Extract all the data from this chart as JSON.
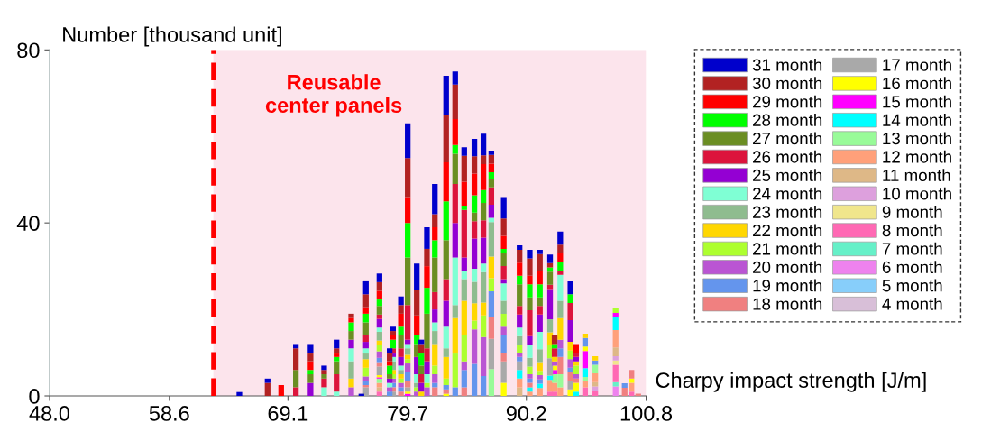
{
  "chart_data": {
    "type": "bar",
    "stacked": true,
    "ylabel": "Number [thousand unit]",
    "xlabel": "Charpy impact strength [J/m]",
    "x": [
      64.8,
      67.3,
      68.5,
      69.8,
      71.1,
      72.3,
      73.4,
      74.7,
      75.6,
      76.0,
      77.2,
      78.1,
      78.4,
      79.1,
      79.7,
      80.5,
      80.9,
      81.4,
      82.1,
      83.1,
      83.9,
      84.7,
      85.6,
      86.4,
      87.1,
      88.2,
      89.6,
      90.5,
      91.4,
      92.3,
      92.7,
      93.2,
      94.1,
      94.6,
      95.4,
      96.3,
      98.1,
      98.9,
      99.5,
      100.1
    ],
    "xlim": [
      48.0,
      100.8
    ],
    "xticks": [
      {
        "value": 48.0,
        "label": "48.0"
      },
      {
        "value": 58.6,
        "label": "58.6"
      },
      {
        "value": 69.1,
        "label": "69.1"
      },
      {
        "value": 79.7,
        "label": "79.7"
      },
      {
        "value": 90.2,
        "label": "90.2"
      },
      {
        "value": 100.8,
        "label": "100.8"
      }
    ],
    "ylim": [
      0,
      80
    ],
    "yticks": [
      0,
      40,
      80
    ],
    "legend": "right",
    "grid": false,
    "bands": [
      {
        "axis": "x",
        "from": 62.5,
        "to": 100.8,
        "label": "Reusable\ncenter panels",
        "color": "#fce4ec"
      }
    ],
    "ref_lines": [
      {
        "axis": "x",
        "value": 62.5,
        "color": "#ff0000",
        "line_style": "dashed"
      }
    ],
    "series": [
      {
        "name": "4 month",
        "color": "#d8bfd8",
        "values": [
          0,
          0,
          0,
          0,
          0,
          0,
          0,
          0,
          0,
          0,
          0,
          0,
          0,
          0,
          0,
          0,
          0,
          0,
          0,
          0,
          0,
          0,
          0,
          0,
          0,
          0,
          0,
          0,
          0,
          0,
          0,
          0,
          0,
          0,
          0,
          0,
          0,
          0,
          0,
          0
        ]
      },
      {
        "name": "5 month",
        "color": "#87cefa",
        "values": [
          0,
          0,
          0,
          0,
          0,
          0,
          0,
          0,
          0,
          0,
          0,
          0,
          0,
          0,
          0,
          0,
          0,
          0,
          0,
          0,
          0,
          0,
          0,
          0,
          0,
          0,
          0,
          0,
          0,
          0,
          0,
          0,
          0,
          0,
          0,
          0,
          0,
          0,
          0,
          0
        ]
      },
      {
        "name": "6 month",
        "color": "#ee82ee",
        "values": [
          0,
          0,
          0,
          0,
          0,
          0,
          0,
          0,
          0,
          0,
          0,
          0,
          0,
          0,
          0,
          0,
          0,
          0,
          0,
          0,
          0,
          0,
          0,
          0,
          0,
          0,
          0,
          0,
          0,
          0,
          0,
          0,
          0,
          0,
          0,
          0,
          2.2,
          0,
          0,
          0
        ]
      },
      {
        "name": "7 month",
        "color": "#66f0c8",
        "values": [
          0,
          0,
          0,
          0,
          0,
          0,
          0,
          0,
          0,
          0,
          0,
          0,
          0,
          0,
          0,
          0,
          0,
          0,
          0,
          0,
          0,
          0,
          0,
          0,
          0,
          0,
          0,
          0,
          0,
          0,
          0,
          0,
          0,
          0,
          0,
          0,
          1,
          0,
          0,
          0
        ]
      },
      {
        "name": "8 month",
        "color": "#ff69b4",
        "values": [
          0,
          0,
          0,
          0,
          0,
          0,
          0,
          0,
          0,
          0,
          1,
          0,
          0,
          0,
          0,
          0,
          0,
          0,
          0,
          0,
          0,
          0,
          0,
          0,
          0,
          0,
          0,
          0,
          0,
          1,
          1,
          0,
          0,
          0,
          2,
          1.2,
          4,
          0,
          1,
          0
        ]
      },
      {
        "name": "9 month",
        "color": "#f0e68c",
        "values": [
          0,
          0,
          0,
          0,
          0,
          0,
          0,
          0,
          0,
          0,
          0,
          0,
          0,
          0,
          0,
          0,
          0,
          0,
          0,
          0,
          0,
          0,
          0,
          0,
          0,
          0,
          0,
          0,
          0,
          0,
          0,
          0,
          0,
          0,
          0,
          0,
          1,
          0,
          0,
          0
        ]
      },
      {
        "name": "10 month",
        "color": "#dda0dd",
        "values": [
          0,
          0,
          0,
          0,
          0,
          0,
          0,
          0,
          0,
          0,
          0,
          0,
          0,
          0,
          0,
          0,
          0,
          0,
          0,
          0,
          0,
          0,
          0,
          0,
          0,
          0,
          0,
          0,
          0,
          0,
          0,
          0,
          0,
          0,
          0,
          1,
          1,
          0,
          0,
          0
        ]
      },
      {
        "name": "11 month",
        "color": "#deb887",
        "values": [
          0,
          0,
          0,
          0,
          0,
          0,
          0,
          0,
          0,
          0,
          1,
          0,
          0,
          0,
          0,
          0,
          0,
          0,
          0,
          0,
          0,
          0,
          0,
          0,
          0,
          0,
          2,
          0,
          0,
          0,
          0,
          0,
          0,
          0,
          0,
          1,
          2,
          0,
          0,
          0
        ]
      },
      {
        "name": "12 month",
        "color": "#ffa07a",
        "values": [
          0,
          0,
          0,
          0,
          0,
          0,
          0,
          0,
          0,
          0,
          1,
          0,
          0,
          0,
          0,
          0,
          0,
          0,
          0,
          0,
          0,
          0,
          0,
          0,
          0,
          0,
          2,
          1,
          1.8,
          2.7,
          2,
          2,
          0,
          0,
          1.4,
          2,
          4,
          0,
          2,
          0
        ]
      },
      {
        "name": "13 month",
        "color": "#98fb98",
        "values": [
          0,
          0,
          0,
          0,
          0,
          0,
          0,
          0,
          0,
          0,
          1,
          0,
          0,
          0,
          0,
          0,
          0,
          0,
          0,
          0,
          0,
          0,
          0,
          0,
          6.2,
          0,
          0,
          0,
          0,
          0,
          2,
          3,
          0,
          0,
          1,
          2,
          0,
          0,
          0,
          0
        ]
      },
      {
        "name": "14 month",
        "color": "#00ffff",
        "values": [
          0,
          0,
          0,
          0,
          0,
          0,
          0,
          0,
          0,
          0,
          0,
          0,
          0,
          0,
          0,
          0,
          0,
          0,
          0,
          0,
          0,
          0,
          0,
          0,
          0,
          0,
          2,
          1,
          1,
          1,
          0,
          0,
          0,
          1,
          2,
          0,
          3,
          0,
          0,
          0
        ]
      },
      {
        "name": "15 month",
        "color": "#ff00ff",
        "values": [
          0,
          0,
          0,
          0,
          0,
          0,
          0,
          0,
          0,
          0,
          0.3,
          0,
          0,
          0,
          0.5,
          0,
          0,
          0,
          0,
          0,
          0,
          0,
          0,
          0,
          0,
          0,
          0,
          0,
          0,
          0,
          1,
          0,
          0,
          0,
          4,
          0,
          1,
          0,
          0,
          0
        ]
      },
      {
        "name": "16 month",
        "color": "#ffff00",
        "values": [
          0,
          0,
          0,
          0,
          0,
          0,
          0,
          0,
          0,
          0,
          0.5,
          0,
          0,
          0,
          0.5,
          0,
          0,
          0,
          0,
          0.5,
          0,
          0,
          0,
          0,
          0,
          3,
          0,
          0,
          0,
          0,
          1,
          0,
          1.5,
          2,
          1,
          0,
          0,
          0,
          1,
          0
        ]
      },
      {
        "name": "17 month",
        "color": "#a9a9a9",
        "values": [
          0,
          0,
          0,
          0,
          0,
          0,
          0,
          0,
          0,
          2,
          2,
          0,
          1,
          0,
          1,
          0,
          0,
          0,
          0,
          0,
          0,
          0,
          0,
          0,
          7,
          5,
          2,
          0,
          0,
          4,
          0,
          0,
          2,
          0,
          0,
          0,
          0,
          0,
          0,
          0
        ]
      },
      {
        "name": "18 month",
        "color": "#f08080",
        "values": [
          0,
          0,
          0,
          0,
          0,
          0,
          0,
          0,
          0,
          0.5,
          1,
          0,
          1,
          1,
          1.5,
          0,
          0,
          0,
          2,
          1,
          0,
          2,
          0,
          0,
          5,
          2,
          0,
          1,
          0,
          0,
          0,
          4,
          2,
          1,
          0,
          0,
          0,
          1.9,
          2,
          0.5
        ]
      },
      {
        "name": "19 month",
        "color": "#6495ed",
        "values": [
          0,
          0,
          0,
          0,
          0,
          0,
          0,
          0,
          0,
          1,
          1,
          1,
          1,
          1,
          2,
          0,
          0,
          0,
          1,
          1,
          2,
          4,
          7.4,
          4.6,
          6,
          4,
          1,
          1,
          1,
          0,
          0,
          2,
          1,
          0,
          2,
          1,
          0,
          1,
          0,
          0
        ]
      },
      {
        "name": "20 month",
        "color": "#ba55d3",
        "values": [
          0,
          0,
          0,
          0,
          0,
          0,
          0,
          2,
          0,
          1,
          1.5,
          1,
          1,
          1,
          2,
          1,
          0,
          2,
          2,
          0,
          0,
          2,
          8,
          9,
          0,
          2,
          1,
          1,
          1,
          0,
          1,
          2,
          2,
          1,
          0,
          0,
          0,
          0,
          0,
          0
        ]
      },
      {
        "name": "21 month",
        "color": "#adff2f",
        "values": [
          0,
          0,
          0,
          0,
          0,
          0,
          0,
          0,
          0,
          2,
          1.5,
          0,
          1,
          1,
          1,
          1,
          0,
          1,
          2,
          1.5,
          8,
          6,
          2,
          5,
          3,
          3,
          1.8,
          1.8,
          1,
          3,
          0,
          0,
          2,
          2,
          0,
          0,
          1,
          0,
          0,
          0
        ]
      },
      {
        "name": "22 month",
        "color": "#ffd700",
        "values": [
          0,
          0,
          0,
          0,
          0,
          0,
          0,
          2,
          0,
          2,
          1,
          0,
          1,
          1,
          1,
          0,
          1,
          0,
          5,
          5,
          8,
          8,
          4,
          3,
          5,
          0,
          0,
          0,
          2,
          3,
          1,
          5,
          2,
          1,
          1,
          1,
          0,
          0,
          0,
          0
        ]
      },
      {
        "name": "23 month",
        "color": "#8fbc8f",
        "values": [
          0,
          0,
          0,
          0,
          0,
          0,
          0,
          4,
          0,
          1.5,
          2,
          0,
          2,
          1,
          1.5,
          1,
          0,
          0,
          3,
          2,
          3,
          5,
          5,
          7,
          8,
          3,
          2,
          2,
          3,
          3,
          0,
          4,
          0,
          0,
          0,
          0,
          0,
          0,
          0,
          0
        ]
      },
      {
        "name": "24 month",
        "color": "#7fffd4",
        "values": [
          0,
          0,
          0,
          0,
          0,
          2,
          1,
          3,
          0,
          1,
          1,
          1,
          1,
          1,
          1,
          2,
          0,
          2,
          2,
          5,
          11,
          2,
          3,
          2,
          1,
          4,
          2,
          3,
          4,
          0,
          0,
          6,
          0,
          0,
          0,
          0,
          0,
          0,
          0,
          0
        ]
      },
      {
        "name": "25 month",
        "color": "#9400d3",
        "values": [
          0,
          0,
          0,
          0,
          3,
          0,
          0,
          2,
          0,
          1.5,
          2,
          1,
          1,
          2,
          1,
          4,
          2,
          3,
          3,
          6,
          8,
          3,
          7,
          6,
          3,
          1,
          3,
          2,
          4,
          7,
          0,
          0,
          5,
          1,
          0,
          0,
          0,
          0,
          0,
          0
        ]
      },
      {
        "name": "26 month",
        "color": "#dc143c",
        "values": [
          0,
          0,
          0,
          2,
          0,
          2,
          4,
          0,
          0,
          1.5,
          1,
          0,
          1,
          2,
          8,
          0,
          2,
          3,
          4,
          5,
          9,
          11,
          4,
          4,
          4,
          3,
          2,
          6,
          2,
          1,
          2,
          1,
          4,
          1,
          0,
          0,
          0,
          0,
          0,
          0
        ]
      },
      {
        "name": "27 month",
        "color": "#6b8e23",
        "values": [
          0,
          0,
          0,
          4,
          2,
          1,
          3,
          2,
          0,
          3,
          2,
          1,
          0,
          3,
          11,
          3,
          2,
          8,
          8,
          9,
          7,
          0,
          2,
          4,
          2,
          3,
          5,
          3,
          2,
          3,
          0,
          0,
          0,
          0,
          0,
          0,
          0,
          0,
          0,
          0
        ]
      },
      {
        "name": "28 month",
        "color": "#00ff00",
        "values": [
          0,
          0,
          0,
          0,
          1,
          0,
          1,
          2,
          0,
          2,
          1.5,
          2,
          2,
          2,
          8,
          2,
          3,
          6,
          4,
          9,
          2,
          1,
          4,
          3,
          1.5,
          1,
          2,
          3,
          3,
          1,
          1,
          2,
          2,
          0,
          0,
          0,
          0,
          0,
          0,
          0
        ]
      },
      {
        "name": "29 month",
        "color": "#ff0000",
        "values": [
          0,
          0,
          2.5,
          0,
          2,
          0,
          1,
          1,
          0,
          1.5,
          2,
          1,
          1,
          3,
          6,
          4.6,
          0,
          5,
          3,
          9,
          6,
          5.5,
          5,
          6,
          2,
          3,
          3,
          2,
          3,
          0,
          0,
          2,
          0,
          2,
          0,
          0,
          0,
          0,
          0,
          0
        ]
      },
      {
        "name": "30 month",
        "color": "#b22222",
        "values": [
          0,
          3,
          0,
          5,
          2,
          1,
          1,
          1,
          0,
          3,
          2,
          2,
          1,
          2,
          9,
          6,
          2,
          4,
          3,
          11,
          8,
          6,
          4,
          2,
          2,
          4,
          3,
          4,
          4,
          1,
          2,
          2,
          0,
          0,
          0,
          0,
          0,
          0,
          0,
          0
        ]
      },
      {
        "name": "31 month",
        "color": "#0000cc",
        "values": [
          0.9,
          1,
          0,
          1,
          2,
          1,
          2,
          0,
          0.5,
          3,
          2,
          1,
          1,
          2,
          8,
          6,
          1,
          5,
          7,
          9,
          3,
          2,
          4,
          5,
          1,
          5,
          1,
          2,
          1,
          2,
          0,
          3,
          3,
          0,
          0,
          0,
          0,
          0,
          0,
          0
        ]
      }
    ]
  }
}
